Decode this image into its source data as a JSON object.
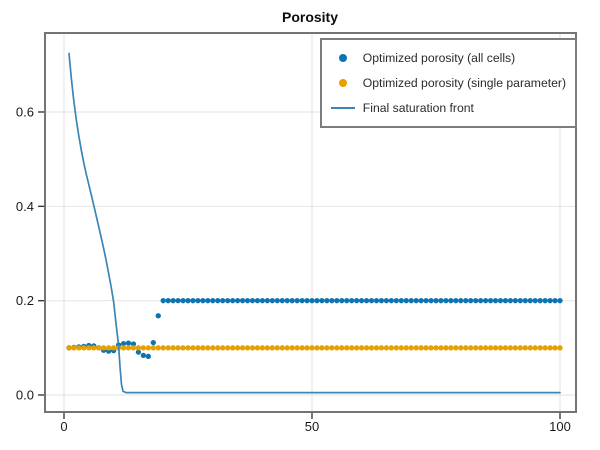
{
  "window": {
    "background": "#ffffff"
  },
  "chart_data": {
    "type": "scatter",
    "title": "Porosity",
    "xlabel": "",
    "ylabel": "",
    "xlim": [
      -3.8,
      103.2
    ],
    "ylim": [
      -0.036,
      0.768
    ],
    "grid": true,
    "x_ticks": [
      0,
      50,
      100
    ],
    "x_tick_labels": [
      "0",
      "50",
      "100"
    ],
    "y_ticks": [
      0.0,
      0.2,
      0.4,
      0.6
    ],
    "y_tick_labels": [
      "0.0",
      "0.2",
      "0.4",
      "0.6"
    ],
    "style": {
      "frame_color": "#747474",
      "grid_color": "#e7e7e7",
      "tick_color": "#3a3a3a",
      "tick_label_color": "#1a1a1a",
      "legend_border_color": "#7d7d7d",
      "legend_background": "#ffffff"
    },
    "legend_position": "top-right",
    "series": [
      {
        "name": "Optimized porosity (all cells)",
        "type": "scatter",
        "color": "#0f73b0",
        "marker": "circle",
        "x_start": 1,
        "x_step": 1,
        "y": [
          0.1,
          0.101,
          0.102,
          0.103,
          0.105,
          0.104,
          0.1,
          0.095,
          0.093,
          0.094,
          0.106,
          0.109,
          0.11,
          0.108,
          0.091,
          0.084,
          0.082,
          0.111,
          0.168,
          0.2,
          0.2,
          0.2,
          0.2,
          0.2,
          0.2,
          0.2,
          0.2,
          0.2,
          0.2,
          0.2,
          0.2,
          0.2,
          0.2,
          0.2,
          0.2,
          0.2,
          0.2,
          0.2,
          0.2,
          0.2,
          0.2,
          0.2,
          0.2,
          0.2,
          0.2,
          0.2,
          0.2,
          0.2,
          0.2,
          0.2,
          0.2,
          0.2,
          0.2,
          0.2,
          0.2,
          0.2,
          0.2,
          0.2,
          0.2,
          0.2,
          0.2,
          0.2,
          0.2,
          0.2,
          0.2,
          0.2,
          0.2,
          0.2,
          0.2,
          0.2,
          0.2,
          0.2,
          0.2,
          0.2,
          0.2,
          0.2,
          0.2,
          0.2,
          0.2,
          0.2,
          0.2,
          0.2,
          0.2,
          0.2,
          0.2,
          0.2,
          0.2,
          0.2,
          0.2,
          0.2,
          0.2,
          0.2,
          0.2,
          0.2,
          0.2,
          0.2,
          0.2,
          0.2,
          0.2,
          0.2
        ]
      },
      {
        "name": "Optimized porosity (single parameter)",
        "type": "scatter",
        "color": "#e6a000",
        "marker": "circle",
        "x_start": 1,
        "x_step": 1,
        "y": [
          0.1,
          0.1,
          0.1,
          0.1,
          0.1,
          0.1,
          0.1,
          0.1,
          0.1,
          0.1,
          0.1,
          0.1,
          0.1,
          0.1,
          0.1,
          0.1,
          0.1,
          0.1,
          0.1,
          0.1,
          0.1,
          0.1,
          0.1,
          0.1,
          0.1,
          0.1,
          0.1,
          0.1,
          0.1,
          0.1,
          0.1,
          0.1,
          0.1,
          0.1,
          0.1,
          0.1,
          0.1,
          0.1,
          0.1,
          0.1,
          0.1,
          0.1,
          0.1,
          0.1,
          0.1,
          0.1,
          0.1,
          0.1,
          0.1,
          0.1,
          0.1,
          0.1,
          0.1,
          0.1,
          0.1,
          0.1,
          0.1,
          0.1,
          0.1,
          0.1,
          0.1,
          0.1,
          0.1,
          0.1,
          0.1,
          0.1,
          0.1,
          0.1,
          0.1,
          0.1,
          0.1,
          0.1,
          0.1,
          0.1,
          0.1,
          0.1,
          0.1,
          0.1,
          0.1,
          0.1,
          0.1,
          0.1,
          0.1,
          0.1,
          0.1,
          0.1,
          0.1,
          0.1,
          0.1,
          0.1,
          0.1,
          0.1,
          0.1,
          0.1,
          0.1,
          0.1,
          0.1,
          0.1,
          0.1,
          0.1
        ]
      },
      {
        "name": "Final saturation front",
        "type": "line",
        "color": "#3a86b4",
        "points": [
          [
            1,
            0.724
          ],
          [
            1.5,
            0.67
          ],
          [
            2,
            0.622
          ],
          [
            2.5,
            0.582
          ],
          [
            3,
            0.548
          ],
          [
            3.5,
            0.518
          ],
          [
            4,
            0.492
          ],
          [
            4.5,
            0.468
          ],
          [
            5,
            0.446
          ],
          [
            5.5,
            0.424
          ],
          [
            6,
            0.402
          ],
          [
            6.5,
            0.38
          ],
          [
            7,
            0.357
          ],
          [
            7.5,
            0.334
          ],
          [
            8,
            0.31
          ],
          [
            8.5,
            0.285
          ],
          [
            9,
            0.258
          ],
          [
            9.5,
            0.23
          ],
          [
            10,
            0.198
          ],
          [
            10.5,
            0.15
          ],
          [
            11,
            0.105
          ],
          [
            11.3,
            0.06
          ],
          [
            11.6,
            0.022
          ],
          [
            11.9,
            0.008
          ],
          [
            12.5,
            0.005
          ],
          [
            20,
            0.005
          ],
          [
            100,
            0.005
          ]
        ]
      }
    ]
  }
}
